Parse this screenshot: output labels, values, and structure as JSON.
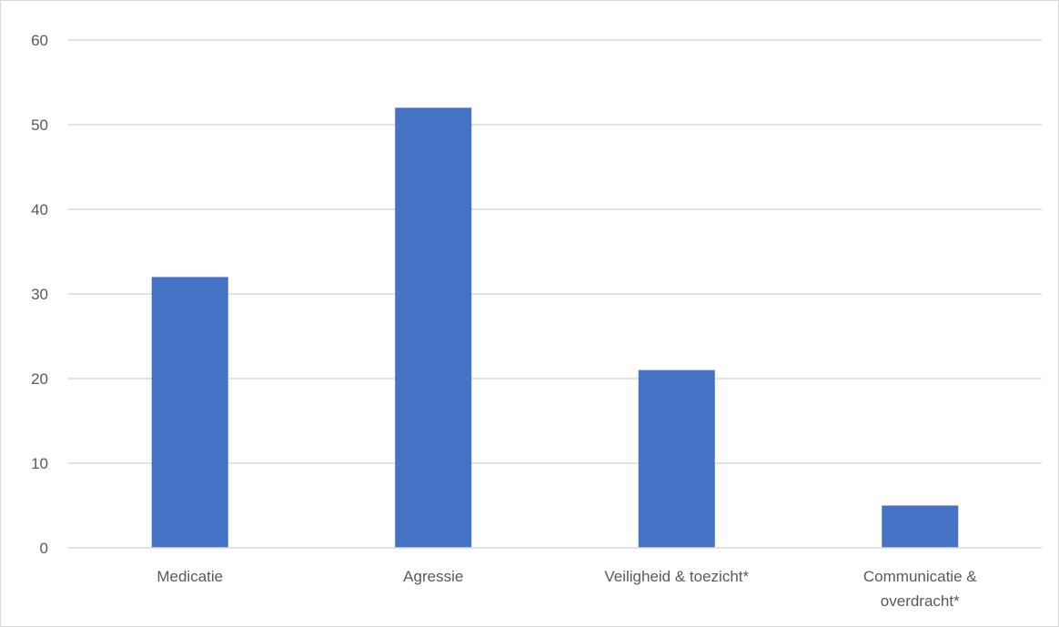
{
  "chart_data": {
    "type": "bar",
    "title": "",
    "xlabel": "",
    "ylabel": "",
    "categories": [
      [
        "Medicatie"
      ],
      [
        "Agressie"
      ],
      [
        "Veiligheid & toezicht*"
      ],
      [
        "Communicatie &",
        "overdracht*"
      ]
    ],
    "values": [
      32,
      52,
      21,
      5
    ],
    "ylim": [
      0,
      60
    ],
    "yticks": [
      "0",
      "10",
      "20",
      "30",
      "40",
      "50",
      "60"
    ],
    "grid": true,
    "legend": "none",
    "bar_color": "#4472c4",
    "grid_color": "#d9d9d9",
    "axis_color": "#d9d9d9",
    "label_color": "#595959"
  }
}
